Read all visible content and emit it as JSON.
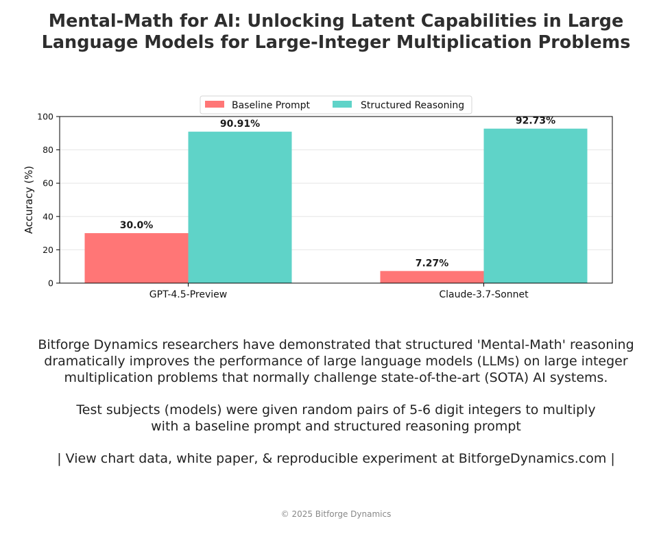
{
  "title_lines": [
    "Mental-Math for AI: Unlocking Latent Capabilities in Large",
    "Language Models for Large-Integer Multiplication Problems"
  ],
  "chart_data": {
    "type": "bar",
    "categories": [
      "GPT-4.5-Preview",
      "Claude-3.7-Sonnet"
    ],
    "series": [
      {
        "name": "Baseline Prompt",
        "values": [
          30.0,
          7.27
        ],
        "labels": [
          "30.0%",
          "7.27%"
        ],
        "color": "#ff7676"
      },
      {
        "name": "Structured Reasoning",
        "values": [
          90.91,
          92.73
        ],
        "labels": [
          "90.91%",
          "92.73%"
        ],
        "color": "#5fd3c8"
      }
    ],
    "ylabel": "Accuracy (%)",
    "ylim": [
      0,
      100
    ],
    "yticks": [
      "0",
      "20",
      "40",
      "60",
      "80",
      "100"
    ],
    "grid": true,
    "legend": "top-center"
  },
  "description": {
    "paragraph1": [
      "Bitforge Dynamics researchers have demonstrated that structured 'Mental-Math' reasoning",
      "dramatically improves the performance of large language models (LLMs) on large integer",
      "multiplication problems that normally challenge state-of-the-art (SOTA) AI systems."
    ],
    "paragraph2": [
      "Test subjects (models) were given random pairs of 5-6 digit integers to multiply",
      "with a baseline prompt and structured reasoning prompt"
    ],
    "link_line": "| View chart data, white paper, & reproducible experiment at BitforgeDynamics.com |"
  },
  "footer": "© 2025 Bitforge Dynamics"
}
